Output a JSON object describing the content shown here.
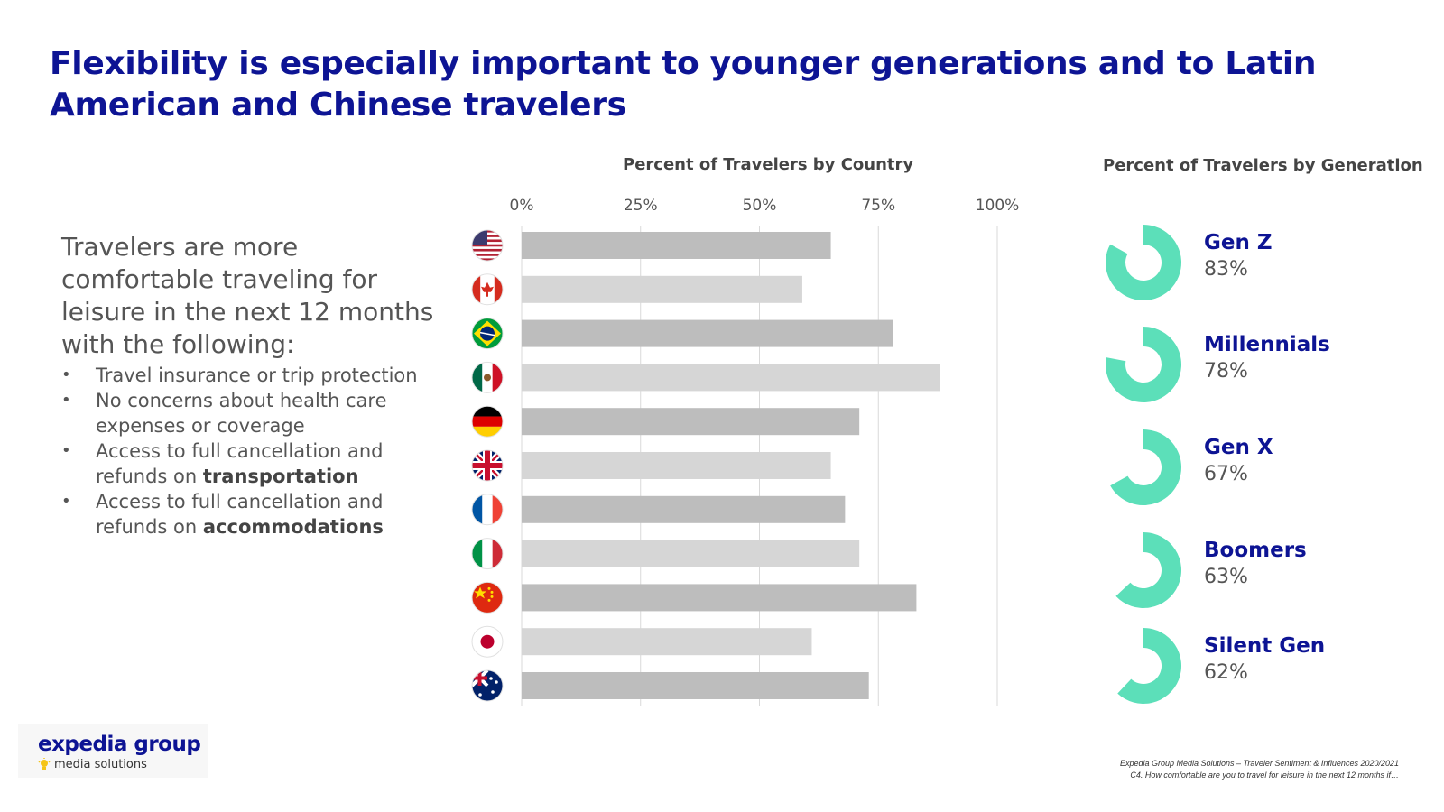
{
  "title": "Flexibility is especially important to younger generations and to Latin American and Chinese travelers",
  "intro": {
    "text": "Travelers are more comfortable traveling for leisure in the next 12 months with the following:",
    "bullets": [
      {
        "text": "Travel insurance or trip protection",
        "bold": ""
      },
      {
        "text": "No concerns about health care expenses or coverage",
        "bold": ""
      },
      {
        "text": "Access to full cancellation and refunds on ",
        "bold": "transportation"
      },
      {
        "text": "Access to full cancellation and refunds on ",
        "bold": "accommodations"
      }
    ]
  },
  "country_chart_title": "Percent of Travelers by Country",
  "generation_chart_title": "Percent of Travelers by Generation",
  "chart_data": [
    {
      "type": "bar",
      "orientation": "horizontal",
      "title": "Percent of Travelers by Country",
      "categories": [
        "United States",
        "Canada",
        "Brazil",
        "Mexico",
        "Germany",
        "United Kingdom",
        "France",
        "Italy",
        "China",
        "Japan",
        "Australia"
      ],
      "flag_icons": [
        "us-flag-icon",
        "canada-flag-icon",
        "brazil-flag-icon",
        "mexico-flag-icon",
        "germany-flag-icon",
        "uk-flag-icon",
        "france-flag-icon",
        "italy-flag-icon",
        "china-flag-icon",
        "japan-flag-icon",
        "australia-flag-icon"
      ],
      "values": [
        65,
        59,
        78,
        88,
        71,
        65,
        68,
        71,
        83,
        61,
        73
      ],
      "xlim": [
        0,
        100
      ],
      "ticks": [
        "0%",
        "25%",
        "50%",
        "75%",
        "100%"
      ],
      "tick_values": [
        0,
        25,
        50,
        75,
        100
      ],
      "grid": true,
      "bar_colors": [
        "#bdbdbd",
        "#d6d6d6"
      ]
    },
    {
      "type": "pie",
      "subtype": "donut",
      "title": "Percent of Travelers by Generation",
      "categories": [
        "Gen Z",
        "Millennials",
        "Gen X",
        "Boomers",
        "Silent Gen"
      ],
      "labels": [
        "83%",
        "78%",
        "67%",
        "63%",
        "62%"
      ],
      "values": [
        83,
        78,
        67,
        63,
        62
      ],
      "color": "#5cdfb9"
    }
  ],
  "logo": {
    "main": "expedia group",
    "sub": "media solutions"
  },
  "footnote": {
    "line1": "Expedia Group Media Solutions – Traveler Sentiment & Influences 2020/2021",
    "line2": "C4. How comfortable are you to travel for leisure in the next 12 months if…"
  },
  "colors": {
    "title": "#0d1494",
    "donut": "#5cdfb9",
    "bar_dark": "#bdbdbd",
    "bar_light": "#d6d6d6"
  }
}
